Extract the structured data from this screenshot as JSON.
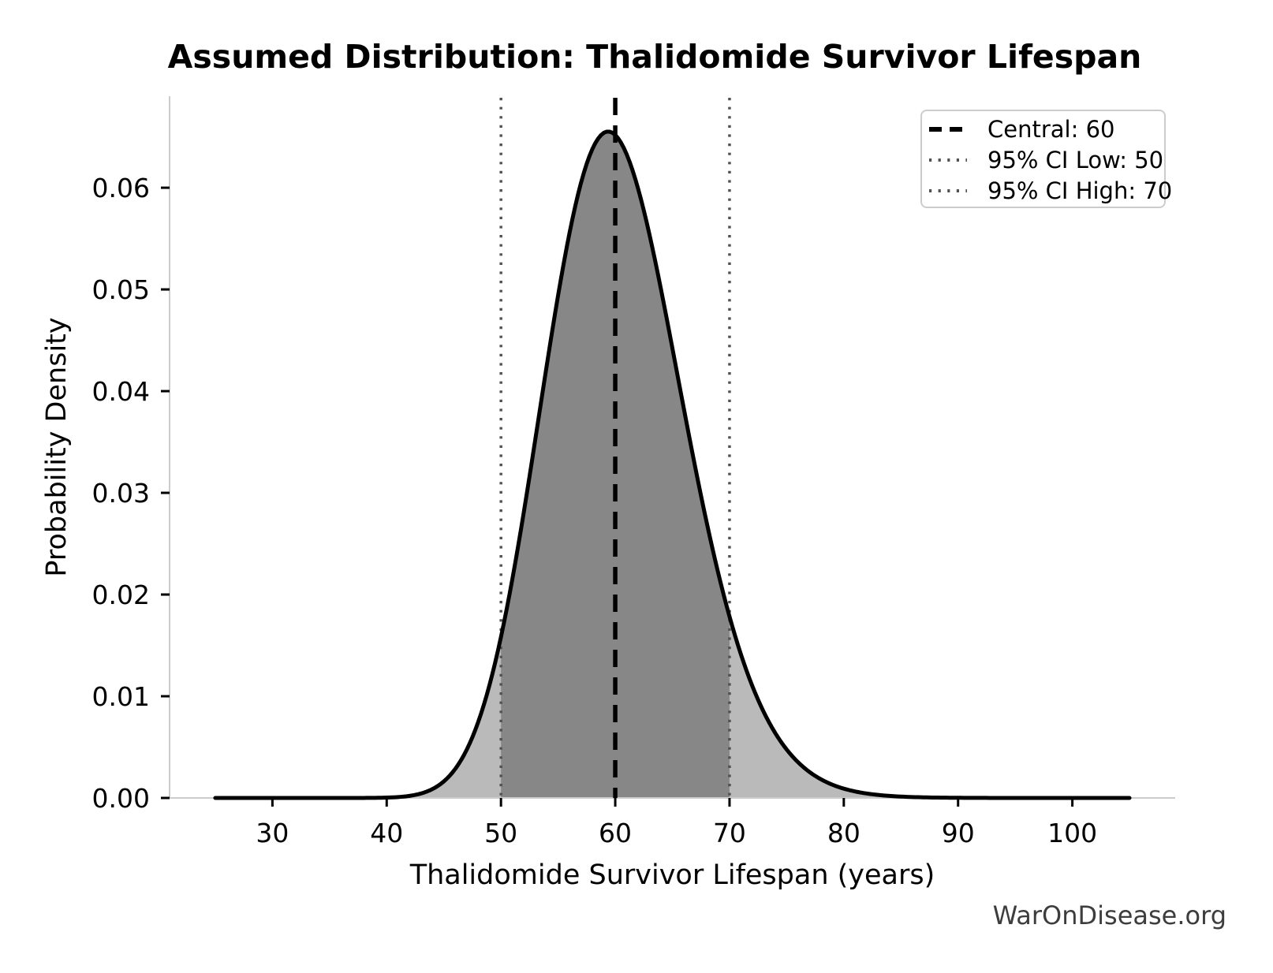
{
  "figure": {
    "watermark": "WarOnDisease.org"
  },
  "chart_data": {
    "type": "area",
    "subtype": "probability-distribution",
    "title": "Assumed Distribution: Thalidomide Survivor Lifespan",
    "xlabel": "Thalidomide Survivor Lifespan (years)",
    "ylabel": "Probability Density",
    "x_ticks": [
      30,
      40,
      50,
      60,
      70,
      80,
      90,
      100
    ],
    "y_tick_values": [
      0,
      0.01,
      0.02,
      0.03,
      0.04,
      0.05,
      0.06
    ],
    "y_tick_labels": [
      "0.00",
      "0.01",
      "0.02",
      "0.03",
      "0.04",
      "0.05",
      "0.06"
    ],
    "xlim": [
      21,
      109
    ],
    "ylim": [
      0,
      0.069
    ],
    "x_range": [
      25,
      105
    ],
    "grid": false,
    "distribution": {
      "family": "lognormal",
      "median": 60,
      "sigma_log": 0.102,
      "mode": 59.4,
      "peak_density": 0.0655
    },
    "markers": {
      "central": 60,
      "ci_low": 50,
      "ci_high": 70,
      "ci_level": "95%"
    },
    "shaded_interval": [
      50,
      70
    ],
    "legend": {
      "position": "upper right",
      "entries": [
        {
          "label": "Central: 60",
          "style": "dashed"
        },
        {
          "label": "95% CI Low: 50",
          "style": "dotted"
        },
        {
          "label": "95% CI High: 70",
          "style": "dotted"
        }
      ]
    },
    "colors": {
      "curve": "#000000",
      "fill_light": "#bababa",
      "fill_dark": "#878787",
      "central_line": "#000000",
      "ci_line": "#525252",
      "spine": "#cccccc",
      "tick": "#000000",
      "text": "#000000",
      "legend_border": "#cccccc",
      "watermark": "#3d3d3d",
      "background": "#ffffff"
    }
  }
}
